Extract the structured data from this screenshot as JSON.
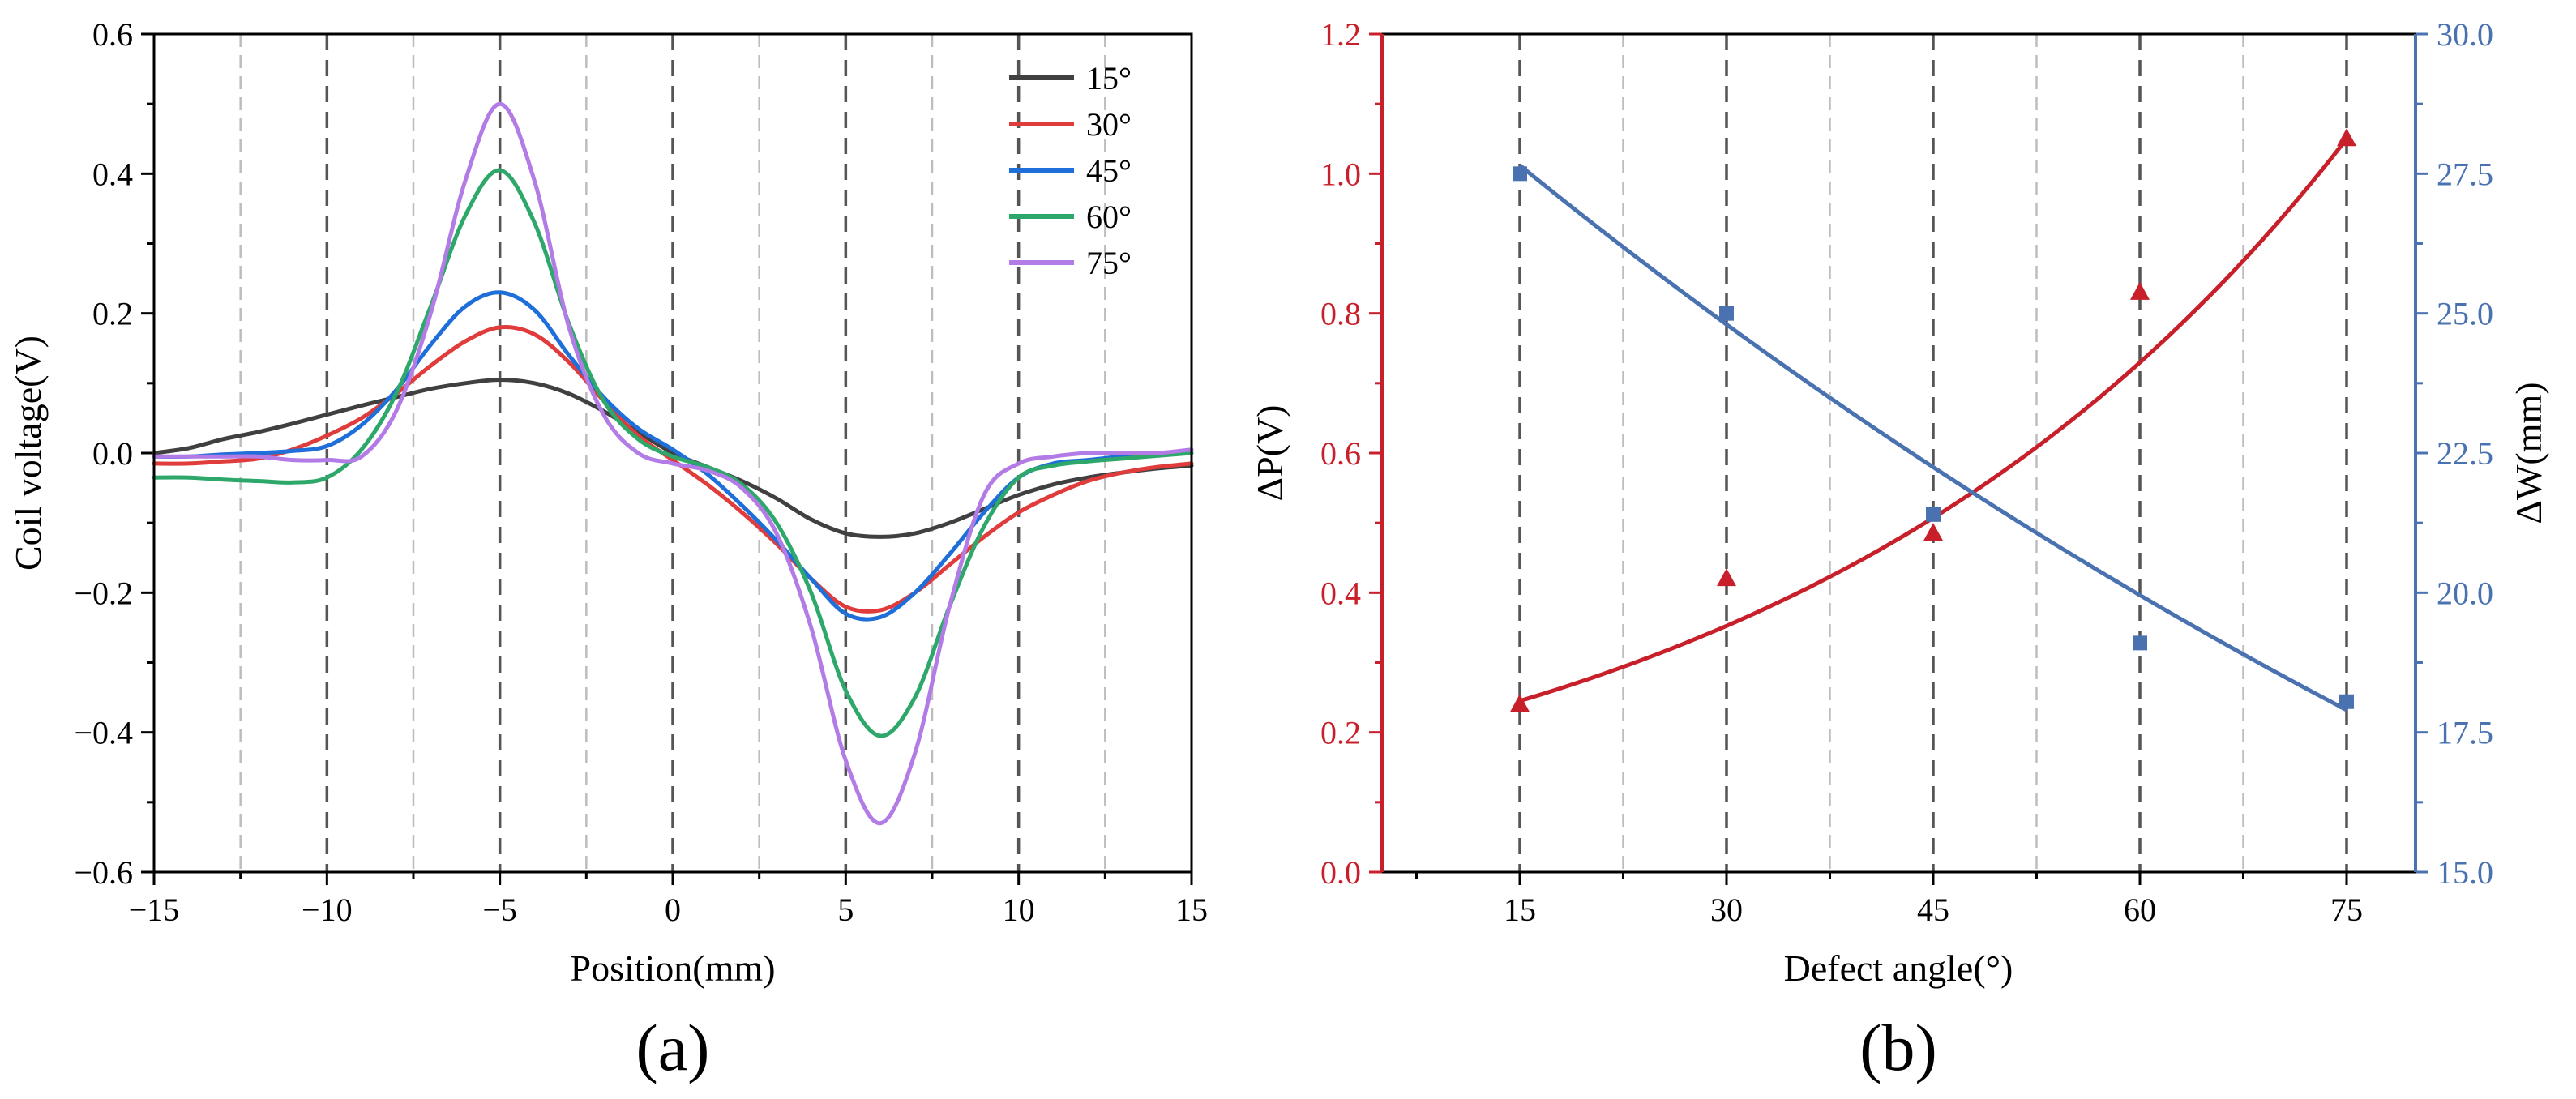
{
  "chart_data": [
    {
      "panel_label": "(a)",
      "type": "line",
      "xlabel": "Position(mm)",
      "ylabel": "Coil voltage(V)",
      "xlim": [
        -15,
        15
      ],
      "ylim": [
        -0.6,
        0.6
      ],
      "xticks": [
        -15,
        -10,
        -5,
        0,
        5,
        10,
        15
      ],
      "xtick_labels": [
        "−15",
        "−10",
        "−5",
        "0",
        "5",
        "10",
        "15"
      ],
      "yticks": [
        -0.6,
        -0.4,
        -0.2,
        0.0,
        0.2,
        0.4,
        0.6
      ],
      "ytick_labels": [
        "−0.6",
        "−0.4",
        "−0.2",
        "0.0",
        "0.2",
        "0.4",
        "0.6"
      ],
      "vlines_major": [
        -10,
        -5,
        0,
        5,
        10
      ],
      "vlines_minor": [
        -12.5,
        -7.5,
        -2.5,
        2.5,
        7.5,
        12.5
      ],
      "legend_position": "top-right",
      "x": [
        -15,
        -14,
        -13,
        -12,
        -11,
        -10,
        -9,
        -8,
        -7,
        -6,
        -5,
        -4,
        -3,
        -2,
        -1,
        0,
        1,
        2,
        3,
        4,
        5,
        6,
        7,
        8,
        9,
        10,
        11,
        12,
        13,
        14,
        15
      ],
      "series": [
        {
          "name": "15°",
          "color": "#404040",
          "values": [
            0.0,
            0.007,
            0.02,
            0.03,
            0.042,
            0.055,
            0.068,
            0.08,
            0.092,
            0.1,
            0.105,
            0.1,
            0.085,
            0.06,
            0.03,
            0.0,
            -0.02,
            -0.04,
            -0.065,
            -0.095,
            -0.115,
            -0.12,
            -0.115,
            -0.1,
            -0.08,
            -0.06,
            -0.045,
            -0.035,
            -0.028,
            -0.022,
            -0.018
          ]
        },
        {
          "name": "30°",
          "color": "#e03c3c",
          "values": [
            -0.015,
            -0.015,
            -0.012,
            -0.008,
            0.005,
            0.025,
            0.05,
            0.085,
            0.125,
            0.16,
            0.18,
            0.17,
            0.13,
            0.075,
            0.025,
            -0.01,
            -0.045,
            -0.085,
            -0.13,
            -0.18,
            -0.22,
            -0.225,
            -0.2,
            -0.16,
            -0.12,
            -0.085,
            -0.06,
            -0.04,
            -0.028,
            -0.02,
            -0.015
          ]
        },
        {
          "name": "45°",
          "color": "#1e6fd9",
          "values": [
            -0.005,
            -0.005,
            -0.002,
            0.0,
            0.003,
            0.01,
            0.04,
            0.09,
            0.155,
            0.21,
            0.23,
            0.205,
            0.14,
            0.08,
            0.035,
            0.005,
            -0.03,
            -0.075,
            -0.125,
            -0.18,
            -0.23,
            -0.235,
            -0.2,
            -0.145,
            -0.085,
            -0.035,
            -0.015,
            -0.01,
            -0.005,
            -0.002,
            0.0
          ]
        },
        {
          "name": "60°",
          "color": "#2ea86a",
          "values": [
            -0.035,
            -0.035,
            -0.038,
            -0.04,
            -0.042,
            -0.035,
            0.005,
            0.085,
            0.21,
            0.34,
            0.405,
            0.33,
            0.185,
            0.075,
            0.02,
            -0.005,
            -0.02,
            -0.045,
            -0.1,
            -0.2,
            -0.34,
            -0.405,
            -0.35,
            -0.22,
            -0.105,
            -0.035,
            -0.018,
            -0.012,
            -0.008,
            -0.004,
            0.0
          ]
        },
        {
          "name": "75°",
          "color": "#b27be6",
          "values": [
            -0.005,
            -0.005,
            -0.005,
            -0.005,
            -0.01,
            -0.01,
            -0.005,
            0.06,
            0.2,
            0.39,
            0.5,
            0.39,
            0.18,
            0.055,
            0.0,
            -0.015,
            -0.025,
            -0.05,
            -0.115,
            -0.25,
            -0.44,
            -0.53,
            -0.43,
            -0.22,
            -0.06,
            -0.015,
            -0.005,
            0.0,
            0.0,
            0.0,
            0.005
          ]
        }
      ]
    },
    {
      "panel_label": "(b)",
      "type": "scatter",
      "xlabel": "Defect angle(°)",
      "ylabel_left": "ΔP(V)",
      "ylabel_right": "ΔW(mm)",
      "xlim": [
        5,
        80
      ],
      "ylim_left": [
        0.0,
        1.2
      ],
      "ylim_right": [
        15.0,
        30.0
      ],
      "xticks": [
        15,
        30,
        45,
        60,
        75
      ],
      "xtick_labels": [
        "15",
        "30",
        "45",
        "60",
        "75"
      ],
      "yticks_left": [
        0.0,
        0.2,
        0.4,
        0.6,
        0.8,
        1.0,
        1.2
      ],
      "ytick_labels_left": [
        "0.0",
        "0.2",
        "0.4",
        "0.6",
        "0.8",
        "1.0",
        "1.2"
      ],
      "yticks_right": [
        15.0,
        17.5,
        20.0,
        22.5,
        25.0,
        27.5,
        30.0
      ],
      "ytick_labels_right": [
        "15.0",
        "17.5",
        "20.0",
        "22.5",
        "25.0",
        "27.5",
        "30.0"
      ],
      "vlines_major": [
        15,
        30,
        45,
        60,
        75
      ],
      "vlines_minor": [
        22.5,
        37.5,
        52.5,
        67.5
      ],
      "left_color": "#c8202a",
      "right_color": "#4a72b0",
      "x": [
        15,
        30,
        45,
        60,
        75
      ],
      "series": [
        {
          "name": "ΔP",
          "axis": "left",
          "marker": "triangle",
          "values": [
            0.24,
            0.42,
            0.485,
            0.83,
            1.05
          ],
          "fit_start": 0.245,
          "fit_end": 1.05
        },
        {
          "name": "ΔW",
          "axis": "right",
          "marker": "square",
          "values": [
            27.5,
            25.0,
            21.4,
            19.1,
            18.05
          ],
          "fit_start": 27.65,
          "fit_end": 17.9
        }
      ]
    }
  ]
}
